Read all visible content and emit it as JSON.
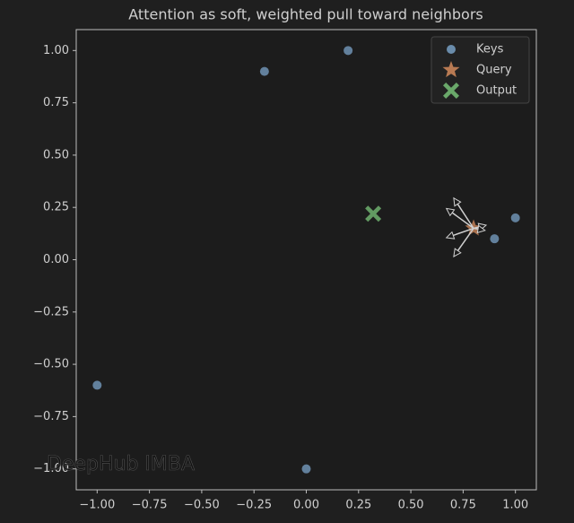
{
  "chart_data": {
    "type": "scatter",
    "title": "Attention as soft, weighted pull toward neighbors",
    "watermark": "DeepHub IMBA",
    "xlim": [
      -1.1,
      1.1
    ],
    "ylim": [
      -1.1,
      1.1
    ],
    "xticks": [
      {
        "value": -1,
        "label": "−1.00"
      },
      {
        "value": -0.75,
        "label": "−0.75"
      },
      {
        "value": -0.5,
        "label": "−0.50"
      },
      {
        "value": -0.25,
        "label": "−0.25"
      },
      {
        "value": 0,
        "label": "0.00"
      },
      {
        "value": 0.25,
        "label": "0.25"
      },
      {
        "value": 0.5,
        "label": "0.50"
      },
      {
        "value": 0.75,
        "label": "0.75"
      },
      {
        "value": 1,
        "label": "1.00"
      }
    ],
    "yticks": [
      {
        "value": -1,
        "label": "−1.00"
      },
      {
        "value": -0.75,
        "label": "−0.75"
      },
      {
        "value": -0.5,
        "label": "−0.50"
      },
      {
        "value": -0.25,
        "label": "−0.25"
      },
      {
        "value": 0,
        "label": "0.00"
      },
      {
        "value": 0.25,
        "label": "0.25"
      },
      {
        "value": 0.5,
        "label": "0.50"
      },
      {
        "value": 0.75,
        "label": "0.75"
      },
      {
        "value": 1,
        "label": "1.00"
      }
    ],
    "legend": "upper right",
    "series": [
      {
        "name": "Keys",
        "color": "#6a8cab",
        "marker": "circle",
        "x": [
          0.2,
          -0.2,
          1.0,
          0.9,
          -1.0,
          0.0
        ],
        "y": [
          1.0,
          0.9,
          0.2,
          0.1,
          -0.6,
          -1.0
        ]
      },
      {
        "name": "Query",
        "color": "#b87a53",
        "marker": "star",
        "x": [
          0.8
        ],
        "y": [
          0.15
        ]
      },
      {
        "name": "Output",
        "color": "#6aa86a",
        "marker": "x",
        "x": [
          0.32
        ],
        "y": [
          0.22
        ]
      }
    ],
    "arrows": {
      "color": "#d0d0d0",
      "x": [
        0.8,
        0.8,
        0.8,
        0.8,
        0.8,
        0.8
      ],
      "y": [
        0.15,
        0.15,
        0.15,
        0.15,
        0.15,
        0.15
      ],
      "u": [
        -0.095,
        -0.13,
        -0.13,
        -0.095,
        0.06,
        0.055
      ],
      "v": [
        0.145,
        0.095,
        -0.045,
        -0.135,
        0.015,
        -0.01
      ]
    }
  }
}
